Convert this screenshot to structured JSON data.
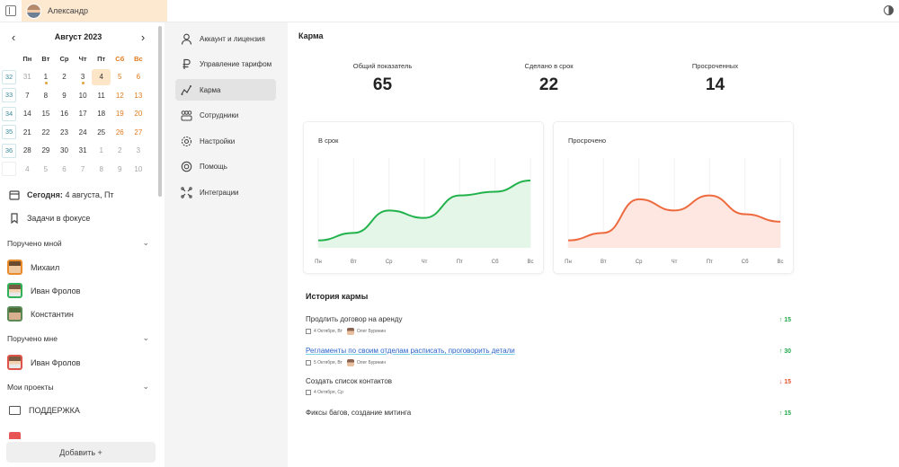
{
  "topbar": {
    "user_name": "Александр"
  },
  "calendar": {
    "month_title": "Август 2023",
    "weekdays": [
      "Пн",
      "Вт",
      "Ср",
      "Чт",
      "Пт",
      "Сб",
      "Вс"
    ],
    "weeks": [
      {
        "wk": "32",
        "days": [
          "31",
          "1",
          "2",
          "3",
          "4",
          "5",
          "6"
        ]
      },
      {
        "wk": "33",
        "days": [
          "7",
          "8",
          "9",
          "10",
          "11",
          "12",
          "13"
        ]
      },
      {
        "wk": "34",
        "days": [
          "14",
          "15",
          "16",
          "17",
          "18",
          "19",
          "20"
        ]
      },
      {
        "wk": "35",
        "days": [
          "21",
          "22",
          "23",
          "24",
          "25",
          "26",
          "27"
        ]
      },
      {
        "wk": "36",
        "days": [
          "28",
          "29",
          "30",
          "31",
          "1",
          "2",
          "3"
        ]
      },
      {
        "wk": "",
        "days": [
          "4",
          "5",
          "6",
          "7",
          "8",
          "9",
          "10"
        ]
      }
    ]
  },
  "sidebar": {
    "today_label": "Сегодня:",
    "today_value": "4 августа, Пт",
    "focus_tasks": "Задачи в фокусе",
    "assigned_by_me": "Поручено мной",
    "assigned_by_me_people": [
      "Михаил",
      "Иван Фролов",
      "Константин"
    ],
    "assigned_to_me": "Поручено мне",
    "assigned_to_me_people": [
      "Иван Фролов"
    ],
    "my_projects": "Мои проекты",
    "projects": [
      "ПОДДЕРЖКА"
    ],
    "add_button": "Добавить +"
  },
  "menu": {
    "items": [
      {
        "label": "Аккаунт и лицензия",
        "icon": "user-icon"
      },
      {
        "label": "Управление тарифом",
        "icon": "ruble-icon"
      },
      {
        "label": "Карма",
        "icon": "karma-graph-icon"
      },
      {
        "label": "Сотрудники",
        "icon": "team-icon"
      },
      {
        "label": "Настройки",
        "icon": "gear-icon"
      },
      {
        "label": "Помощь",
        "icon": "lifebuoy-icon"
      },
      {
        "label": "Интеграции",
        "icon": "integrations-icon"
      }
    ],
    "active_index": 2
  },
  "karma": {
    "title": "Карма",
    "stats": [
      {
        "label": "Общий показатель",
        "value": "65",
        "color": "#fdebdc"
      },
      {
        "label": "Сделано в  срок",
        "value": "22",
        "color": "#e3f7e4"
      },
      {
        "label": "Просроченных",
        "value": "14",
        "color": "#fde6e6"
      }
    ],
    "history_title": "История кармы",
    "history": [
      {
        "title": "Продлить договор на аренду",
        "date": "4 Октября, Вт",
        "user": "Олег Буринин",
        "points": "↑ 15",
        "dir": "up",
        "link": false
      },
      {
        "title": "Регламенты по своим отделам расписать, проговорить детали",
        "date": "5 Октября, Вт",
        "user": "Олег Буринин",
        "points": "↑ 30",
        "dir": "up",
        "link": true
      },
      {
        "title": "Создать список контактов",
        "date": "4 Октября, Ср",
        "user": "",
        "points": "↓ 15",
        "dir": "down",
        "link": false
      },
      {
        "title": "Фиксы багов, создание митинга",
        "date": "",
        "user": "",
        "points": "↑ 15",
        "dir": "up",
        "link": false
      }
    ]
  },
  "chart_data": [
    {
      "type": "area",
      "title": "В срок",
      "categories": [
        "Пн",
        "Вт",
        "Ср",
        "Чт",
        "Пт",
        "Сб",
        "Вс"
      ],
      "series": [
        {
          "values": [
            1,
            2,
            5,
            4,
            7,
            7.5,
            9
          ]
        }
      ],
      "ylim": [
        0,
        12
      ],
      "color": "#22b24c",
      "fill": "#e4f6e7",
      "grid": true
    },
    {
      "type": "area",
      "title": "Просрочено",
      "categories": [
        "Пн",
        "Вт",
        "Ср",
        "Чт",
        "Пт",
        "Сб",
        "Вс"
      ],
      "series": [
        {
          "values": [
            1,
            2,
            6.5,
            5,
            7,
            4.5,
            3.5
          ]
        }
      ],
      "ylim": [
        0,
        12
      ],
      "color": "#ee6a3e",
      "fill": "#fde7e0",
      "grid": true
    }
  ]
}
